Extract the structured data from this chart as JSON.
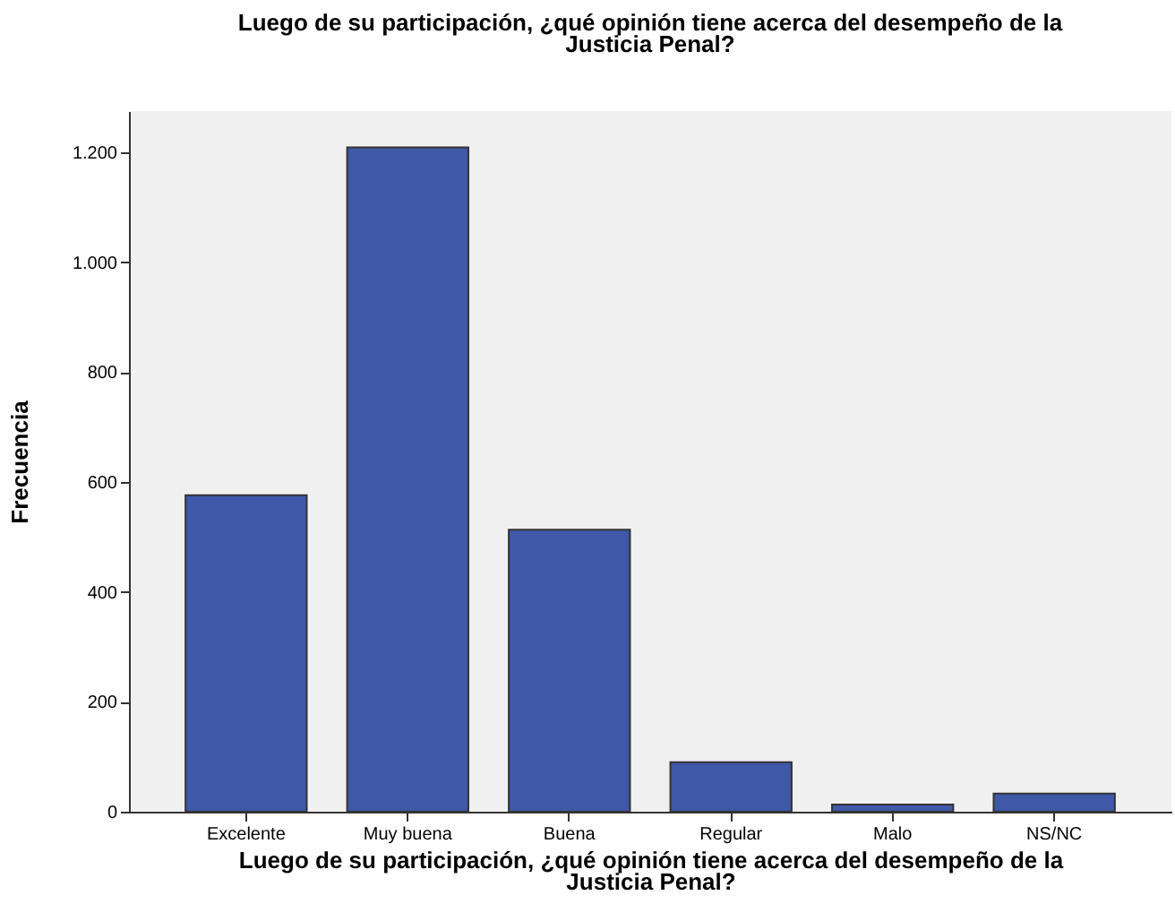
{
  "chart_data": {
    "type": "bar",
    "title": "Luego de su participación, ¿qué opinión tiene acerca del desempeño de la Justicia Penal?",
    "xlabel": "Luego de su participación, ¿qué opinión tiene acerca del desempeño de la Justicia Penal?",
    "ylabel": "Frecuencia",
    "categories": [
      "Excelente",
      "Muy buena",
      "Buena",
      "Regular",
      "Malo",
      "NS/NC"
    ],
    "values": [
      576,
      1209,
      513,
      90,
      13,
      33
    ],
    "color": "#3f58a8",
    "ylim": [
      0,
      1275
    ],
    "yticks": [
      0,
      200,
      400,
      600,
      800,
      {
        "value": 1000,
        "label": "1.000"
      },
      {
        "value": 1200,
        "label": "1.200"
      }
    ],
    "grid": false
  }
}
